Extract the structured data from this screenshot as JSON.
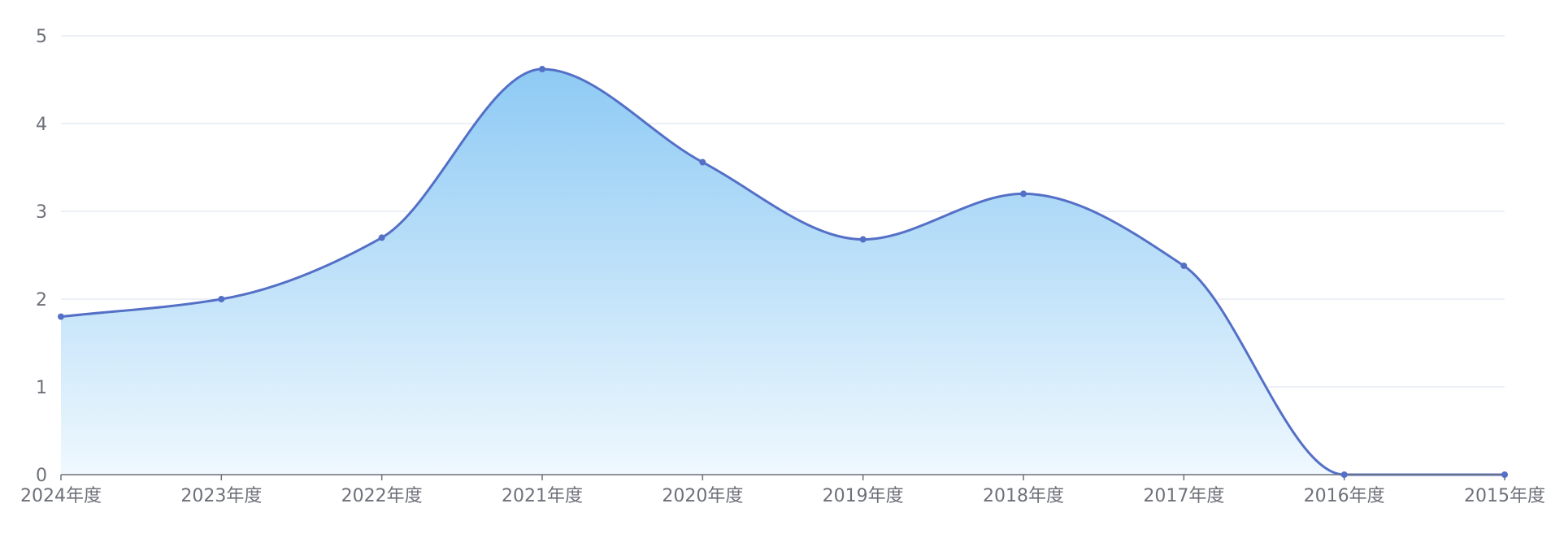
{
  "chart_data": {
    "type": "area",
    "categories": [
      "2024年度",
      "2023年度",
      "2022年度",
      "2021年度",
      "2020年度",
      "2019年度",
      "2018年度",
      "2017年度",
      "2016年度",
      "2015年度"
    ],
    "series": [
      {
        "values": [
          1.8,
          2.0,
          2.7,
          4.62,
          3.56,
          2.68,
          3.2,
          2.38,
          0.0,
          0.0
        ]
      }
    ],
    "ylim": [
      0,
      5
    ],
    "yticks": [
      0,
      1,
      2,
      3,
      4,
      5
    ],
    "smooth": true,
    "grid": true,
    "colors": {
      "line": "#5470c6",
      "area_top": "#8ecaf4",
      "area_bottom": "#eff8fe",
      "grid": "#e0e6f1",
      "axis": "#6e7079"
    }
  }
}
